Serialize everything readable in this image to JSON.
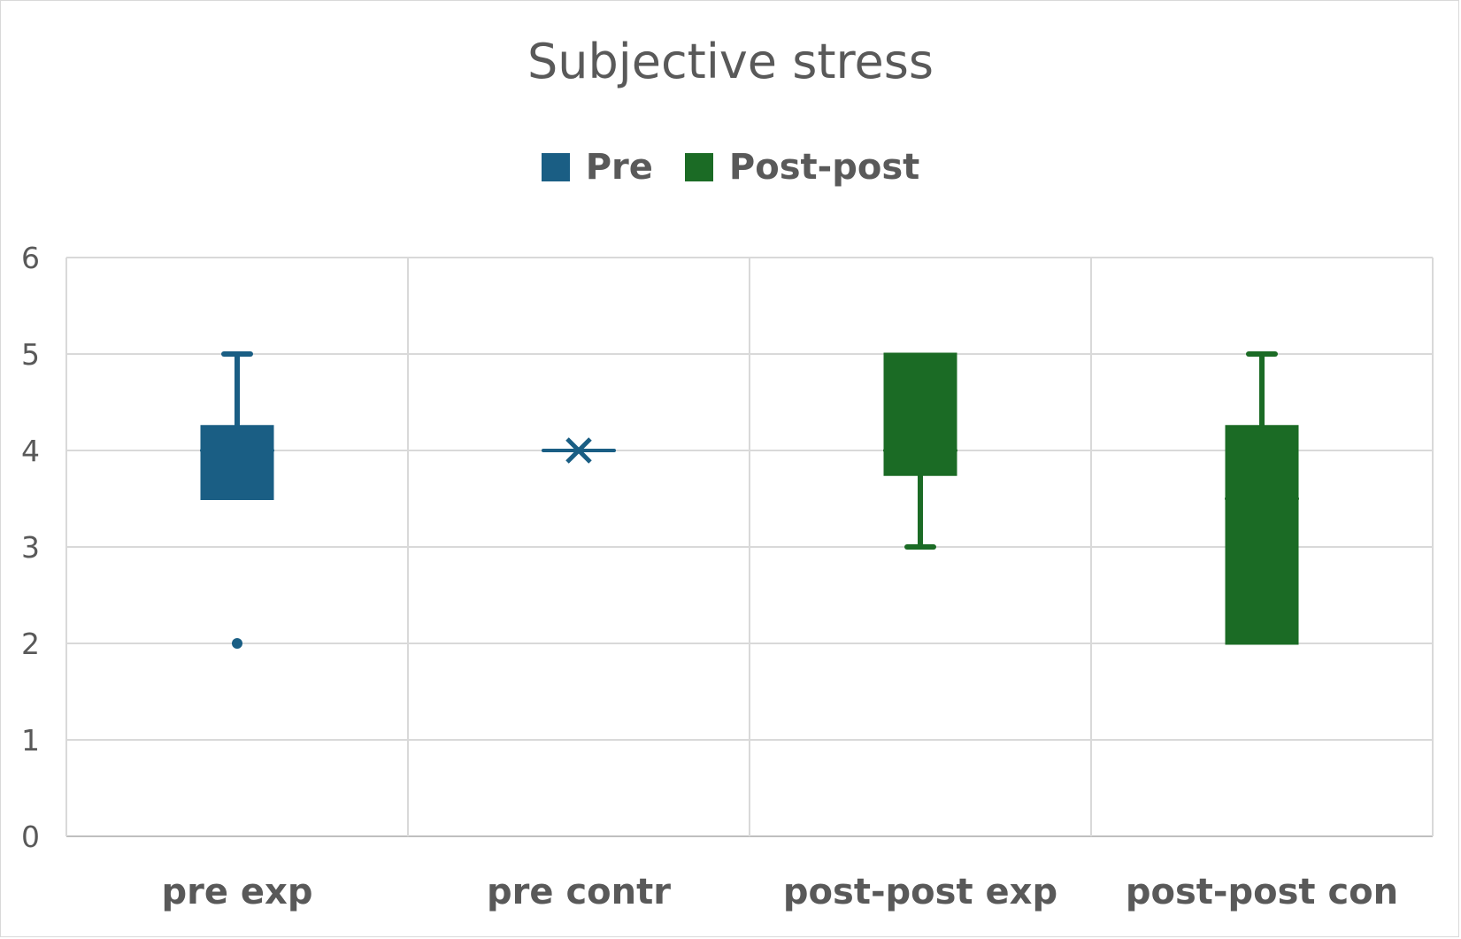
{
  "chart_data": {
    "type": "box",
    "title": "Subjective stress",
    "categories": [
      "pre exp",
      "pre contr",
      "post-post exp",
      "post-post con"
    ],
    "ylim": [
      0,
      6
    ],
    "yticks": [
      0,
      1,
      2,
      3,
      4,
      5,
      6
    ],
    "grid": true,
    "legend_position": "top",
    "legend": [
      {
        "name": "Pre",
        "color": "#1a5e84"
      },
      {
        "name": "Post-post",
        "color": "#1b6b25"
      }
    ],
    "boxes": [
      {
        "category": "pre exp",
        "series": "Pre",
        "min": 3.5,
        "q1": 3.5,
        "median": 4,
        "q3": 4.25,
        "max": 5,
        "mean": 4,
        "outliers": [
          2
        ]
      },
      {
        "category": "pre contr",
        "series": "Pre",
        "min": 4,
        "q1": 4,
        "median": 4,
        "q3": 4,
        "max": 4,
        "mean": 4,
        "outliers": []
      },
      {
        "category": "post-post exp",
        "series": "Post-post",
        "min": 3,
        "q1": 3.75,
        "median": 4,
        "q3": 5,
        "max": 5,
        "mean": 4,
        "outliers": []
      },
      {
        "category": "post-post con",
        "series": "Post-post",
        "min": 2,
        "q1": 2,
        "median": 3.5,
        "q3": 4.25,
        "max": 5,
        "mean": 3.5,
        "outliers": []
      }
    ]
  }
}
